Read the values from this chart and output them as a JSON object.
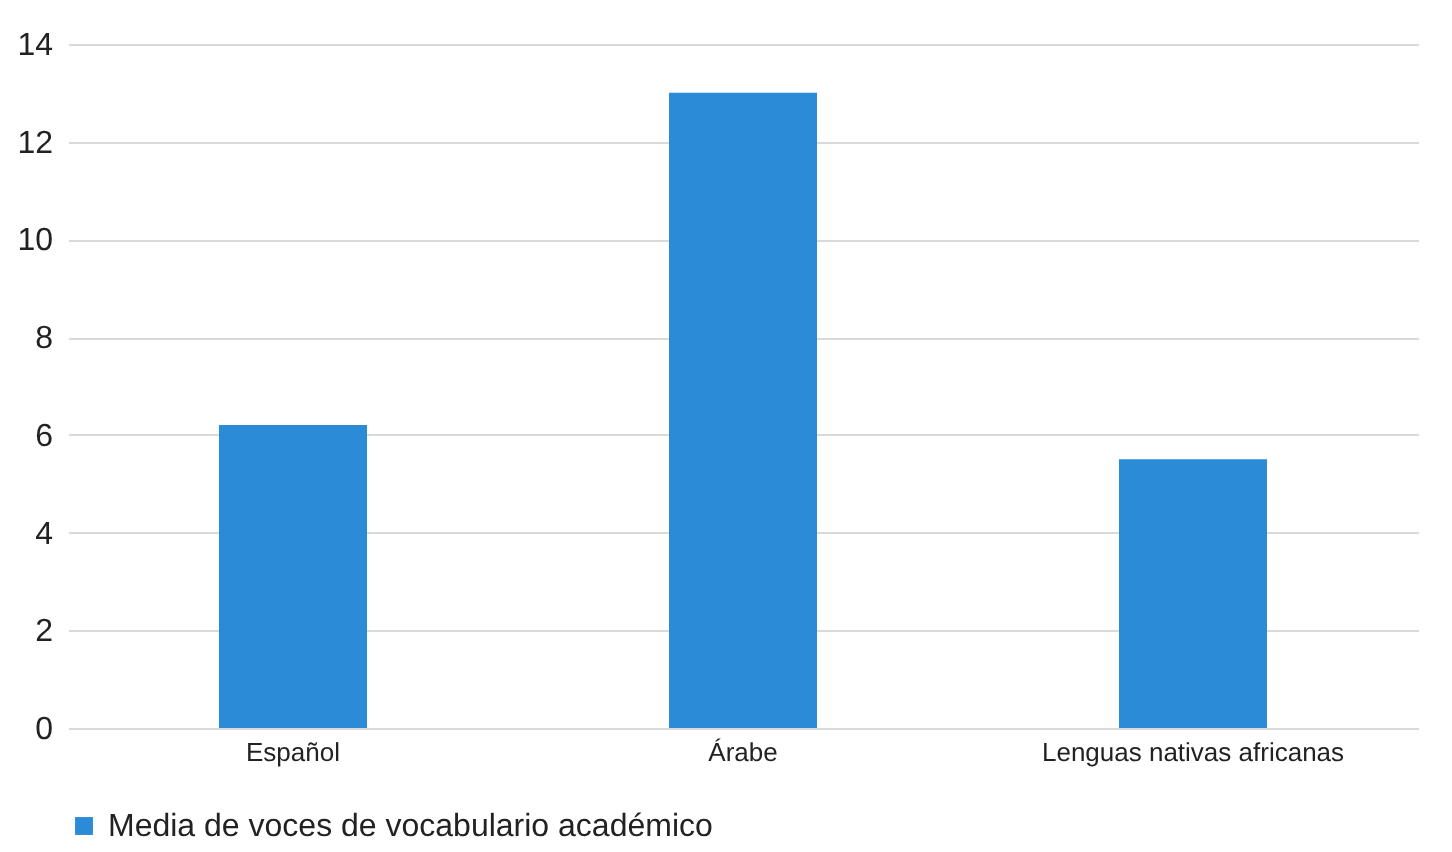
{
  "chart_data": {
    "type": "bar",
    "categories": [
      "Español",
      "Árabe",
      "Lenguas nativas africanas"
    ],
    "series": [
      {
        "name": "Media de voces de vocabulario académico",
        "color": "#2b8bd6",
        "values": [
          6.2,
          13,
          5.5
        ]
      }
    ],
    "ylim": [
      0,
      14
    ],
    "yticks": [
      0,
      2,
      4,
      6,
      8,
      10,
      12,
      14
    ],
    "grid": "y",
    "legend": "bottom"
  }
}
